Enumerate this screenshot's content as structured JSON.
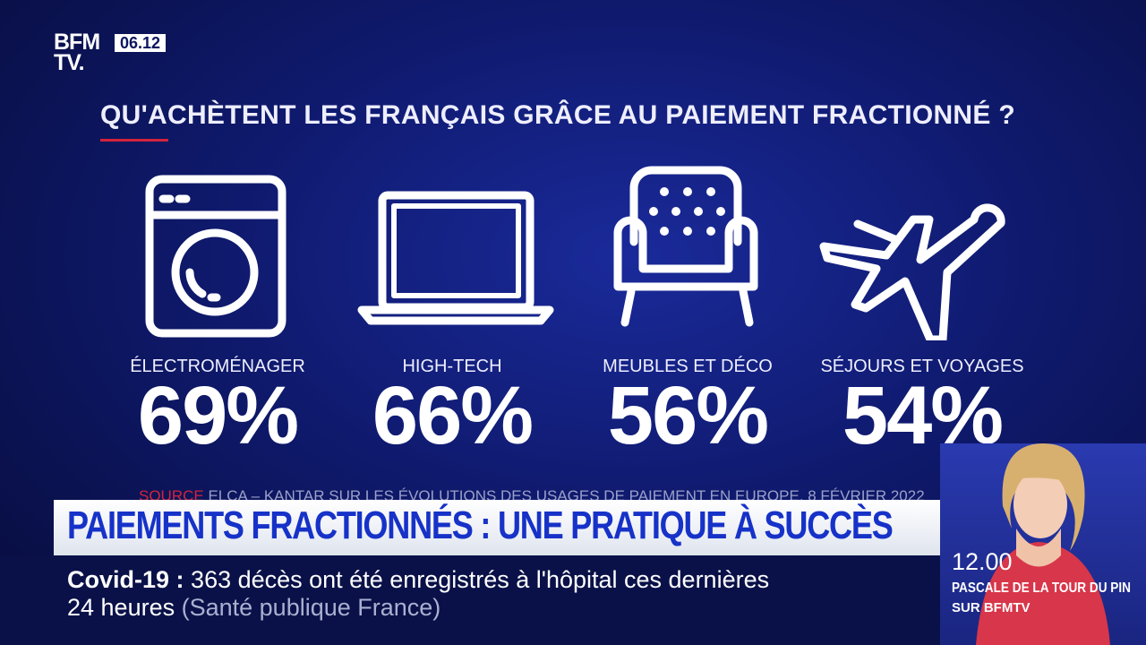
{
  "channel": {
    "logo_line1": "BFM",
    "logo_line2": "TV.",
    "clock": "06.12"
  },
  "infographic": {
    "title": "QU'ACHÈTENT LES FRANÇAIS GRÂCE AU PAIEMENT FRACTIONNÉ ?",
    "items": [
      {
        "label": "ÉLECTROMÉNAGER",
        "value": "69%"
      },
      {
        "label": "HIGH-TECH",
        "value": "66%"
      },
      {
        "label": "MEUBLES ET DÉCO",
        "value": "56%"
      },
      {
        "label": "SÉJOURS ET VOYAGES",
        "value": "54%"
      }
    ],
    "source_label": "SOURCE",
    "source": "ELCA – KANTAR SUR LES ÉVOLUTIONS DES USAGES DE PAIEMENT EN EUROPE, 8 FÉVRIER 2022"
  },
  "banner": {
    "headline": "PAIEMENTS FRACTIONNÉS : UNE PRATIQUE À SUCCÈS"
  },
  "ticker": {
    "topic": "Covid-19 :",
    "line1": "363 décès ont été enregistrés à l'hôpital ces dernières",
    "line2": "24 heures",
    "credit": "(Santé publique France)"
  },
  "presenter": {
    "time": "12.00",
    "name": "PASCALE DE LA TOUR DU PIN",
    "channel": "SUR BFMTV"
  }
}
